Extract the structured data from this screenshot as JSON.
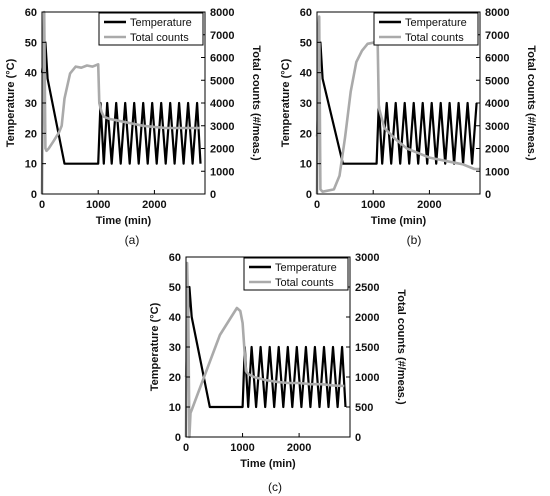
{
  "chart_data": [
    {
      "type": "line",
      "caption": "(a)",
      "xlabel": "Time (min)",
      "ylabel": "Temperature (°C)",
      "y2label": "Total counts (#/meas.)",
      "xlim": [
        0,
        2900
      ],
      "ylim": [
        0,
        60
      ],
      "y2lim": [
        0,
        8000
      ],
      "xticks": [
        0,
        1000,
        2000
      ],
      "yticks": [
        0,
        10,
        20,
        30,
        40,
        50,
        60
      ],
      "y2ticks": [
        0,
        1000,
        2000,
        3000,
        4000,
        5000,
        6000,
        7000,
        8000
      ],
      "grid": false,
      "legend_position": "top-right",
      "series": [
        {
          "name": "Temperature",
          "axis": "left",
          "color": "#000000",
          "x": [
            0,
            60,
            100,
            400,
            1000,
            1040,
            1100,
            1160,
            1240,
            1320,
            1400,
            1480,
            1560,
            1640,
            1720,
            1800,
            1880,
            1960,
            2040,
            2120,
            2200,
            2280,
            2360,
            2440,
            2520,
            2600,
            2680,
            2760,
            2820
          ],
          "y": [
            40,
            50,
            38,
            10,
            10,
            30,
            10,
            30,
            10,
            30,
            10,
            30,
            10,
            30,
            10,
            30,
            10,
            30,
            10,
            30,
            10,
            30,
            10,
            30,
            10,
            30,
            10,
            30,
            10
          ]
        },
        {
          "name": "Total counts",
          "axis": "right",
          "color": "#aaaaaa",
          "x": [
            0,
            20,
            40,
            60,
            80,
            120,
            200,
            300,
            350,
            400,
            500,
            600,
            700,
            800,
            900,
            1000,
            1020,
            1060,
            1100,
            1200,
            1400,
            1600,
            1800,
            2000,
            2200,
            2400,
            2600,
            2800
          ],
          "y": [
            0,
            6000,
            8000,
            2000,
            1900,
            2000,
            2300,
            2700,
            3000,
            4200,
            5300,
            5600,
            5550,
            5650,
            5600,
            5700,
            4000,
            3600,
            3400,
            3300,
            3200,
            3100,
            3000,
            2950,
            2900,
            2900,
            2900,
            2900
          ]
        }
      ]
    },
    {
      "type": "line",
      "caption": "(b)",
      "xlabel": "Time (min)",
      "ylabel": "Temperature (°C)",
      "y2label": "Total counts (#/meas.)",
      "xlim": [
        0,
        2900
      ],
      "ylim": [
        0,
        60
      ],
      "y2lim": [
        0,
        8000
      ],
      "xticks": [
        0,
        1000,
        2000
      ],
      "yticks": [
        0,
        10,
        20,
        30,
        40,
        50,
        60
      ],
      "y2ticks": [
        0,
        1000,
        2000,
        3000,
        4000,
        5000,
        6000,
        7000,
        8000
      ],
      "grid": false,
      "legend_position": "top-right",
      "series": [
        {
          "name": "Temperature",
          "axis": "left",
          "color": "#000000",
          "x": [
            0,
            60,
            100,
            460,
            1060,
            1100,
            1160,
            1240,
            1320,
            1400,
            1480,
            1560,
            1640,
            1720,
            1800,
            1880,
            1960,
            2040,
            2120,
            2200,
            2280,
            2360,
            2440,
            2520,
            2600,
            2680,
            2760,
            2840
          ],
          "y": [
            19,
            50,
            38,
            10,
            10,
            30,
            10,
            30,
            10,
            30,
            10,
            30,
            10,
            30,
            10,
            30,
            10,
            30,
            10,
            30,
            10,
            30,
            10,
            30,
            10,
            30,
            10,
            30
          ]
        },
        {
          "name": "Total counts",
          "axis": "right",
          "color": "#aaaaaa",
          "x": [
            0,
            20,
            40,
            60,
            100,
            300,
            400,
            500,
            600,
            700,
            800,
            900,
            1000,
            1040,
            1080,
            1100,
            1200,
            1400,
            1600,
            1800,
            2000,
            2200,
            2400,
            2600,
            2800,
            2900
          ],
          "y": [
            0,
            7000,
            7800,
            200,
            100,
            200,
            800,
            2500,
            4500,
            5800,
            6300,
            6600,
            6650,
            6700,
            6600,
            3800,
            2900,
            2400,
            2000,
            1800,
            1600,
            1500,
            1400,
            1300,
            1100,
            1100
          ]
        }
      ]
    },
    {
      "type": "line",
      "caption": "(c)",
      "xlabel": "Time (min)",
      "ylabel": "Temperature (°C)",
      "y2label": "Total counts (#/meas.)",
      "xlim": [
        0,
        2900
      ],
      "ylim": [
        0,
        60
      ],
      "y2lim": [
        0,
        3000
      ],
      "xticks": [
        0,
        1000,
        2000
      ],
      "yticks": [
        0,
        10,
        20,
        30,
        40,
        50,
        60
      ],
      "y2ticks": [
        0,
        500,
        1000,
        1500,
        2000,
        2500,
        3000
      ],
      "grid": false,
      "legend_position": "top-right",
      "series": [
        {
          "name": "Temperature",
          "axis": "left",
          "color": "#000000",
          "x": [
            0,
            60,
            100,
            420,
            1000,
            1040,
            1100,
            1160,
            1240,
            1320,
            1400,
            1480,
            1560,
            1640,
            1720,
            1800,
            1880,
            1960,
            2040,
            2120,
            2200,
            2280,
            2360,
            2440,
            2520,
            2600,
            2680,
            2760,
            2820
          ],
          "y": [
            20,
            50,
            40,
            10,
            10,
            30,
            10,
            30,
            10,
            30,
            10,
            30,
            10,
            30,
            10,
            30,
            10,
            30,
            10,
            30,
            10,
            30,
            10,
            30,
            10,
            30,
            10,
            30,
            10
          ]
        },
        {
          "name": "Total counts",
          "axis": "right",
          "color": "#aaaaaa",
          "x": [
            0,
            20,
            40,
            60,
            80,
            100,
            200,
            400,
            600,
            800,
            900,
            960,
            1000,
            1060,
            1100,
            1200,
            1400,
            1600,
            1800,
            2000,
            2200,
            2400,
            2600,
            2800
          ],
          "y": [
            0,
            2900,
            2000,
            0,
            400,
            450,
            700,
            1200,
            1700,
            2000,
            2150,
            2100,
            1900,
            1100,
            1050,
            1000,
            950,
            920,
            900,
            900,
            880,
            880,
            860,
            850
          ]
        }
      ]
    }
  ]
}
